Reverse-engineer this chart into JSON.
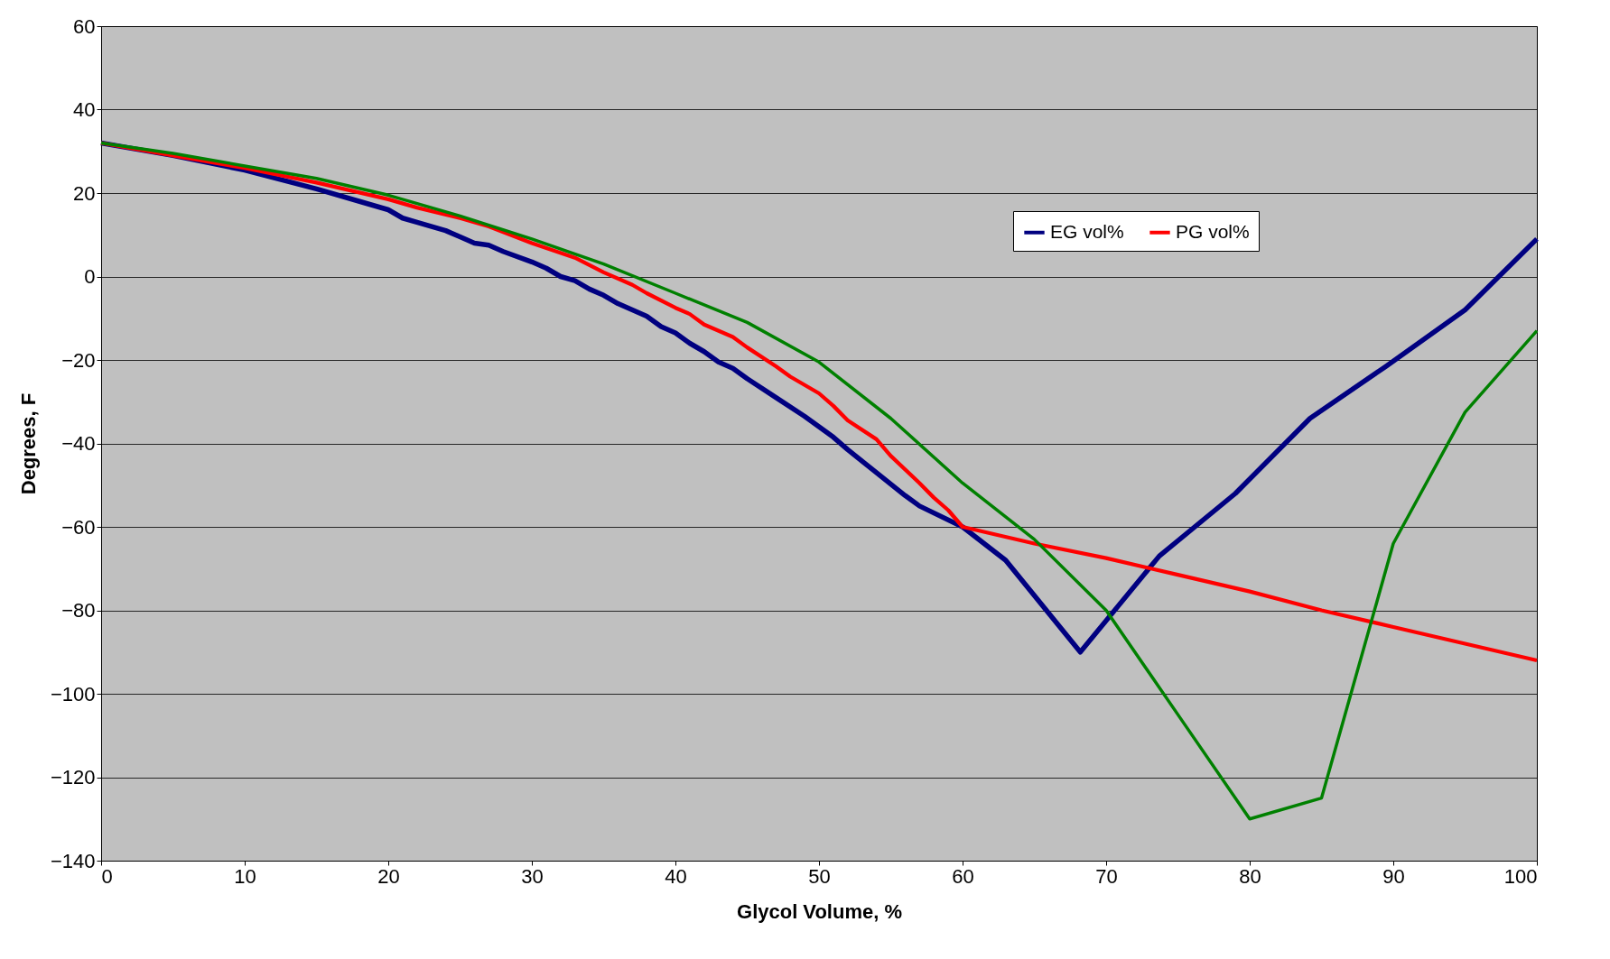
{
  "chart_data": {
    "type": "line",
    "xlabel": "Glycol Volume, %",
    "ylabel": "Degrees, F",
    "xlim": [
      0,
      100
    ],
    "xticks": [
      0,
      10,
      20,
      30,
      40,
      50,
      60,
      70,
      80,
      90,
      100
    ],
    "ylim": [
      -140,
      60
    ],
    "yticks": [
      -140,
      -120,
      -100,
      -80,
      -60,
      -40,
      -20,
      0,
      20,
      40,
      60
    ],
    "grid": "y",
    "legend": "top right",
    "marker": "none",
    "line_style": "solid",
    "series": [
      {
        "name": "EG vol%",
        "color": "#000080",
        "x": [
          0,
          5,
          10,
          15,
          18,
          20,
          21,
          22,
          24,
          25,
          26,
          27,
          28,
          30,
          31,
          32,
          33,
          34,
          35,
          36,
          38,
          39,
          40,
          41,
          42,
          43,
          44,
          45,
          47,
          49,
          50,
          51,
          52,
          54,
          56,
          57,
          60,
          63,
          68.2,
          73.7,
          79,
          84.2,
          89.5,
          95,
          100
        ],
        "values": [
          32,
          29,
          25.5,
          21,
          18,
          16,
          14,
          13,
          11,
          9.5,
          8,
          7.5,
          6,
          3.5,
          2,
          0,
          -1,
          -3,
          -4.5,
          -6.5,
          -9.5,
          -12,
          -13.5,
          -16,
          -18,
          -20.5,
          -22,
          -24.5,
          -29,
          -33.5,
          -36,
          -38.5,
          -41.5,
          -47,
          -52.5,
          -55,
          -60,
          -68,
          -90,
          -67,
          -52,
          -34,
          -21.5,
          -8,
          9
        ]
      },
      {
        "name": "PG vol%",
        "color": "#ff0000",
        "x": [
          0,
          5,
          10,
          15,
          20,
          22,
          25,
          27,
          30,
          33,
          35,
          37,
          38,
          40,
          41,
          42,
          44,
          45,
          47,
          48,
          50,
          51,
          52,
          54,
          55,
          57,
          58,
          59,
          60,
          65,
          70,
          75,
          80,
          85,
          90,
          95,
          100
        ],
        "values": [
          32,
          29,
          26,
          22.5,
          18.5,
          16.5,
          14,
          12,
          8,
          4.5,
          1,
          -2,
          -4,
          -7.5,
          -9,
          -11.5,
          -14.5,
          -17,
          -21.5,
          -24,
          -28,
          -31,
          -34.5,
          -39,
          -43,
          -49.5,
          -53,
          -56,
          -60,
          -64,
          -67.5,
          -71.5,
          -75.5,
          -80,
          -84,
          -88,
          -92
        ]
      },
      {
        "color": "#008000",
        "x": [
          0,
          5,
          10,
          15,
          20,
          25,
          30,
          35,
          40,
          45,
          50,
          55,
          60,
          65,
          70,
          75,
          80,
          85,
          90,
          95,
          100
        ],
        "values": [
          32,
          29.5,
          26.5,
          23.5,
          19.5,
          14.5,
          9,
          3,
          -4,
          -11,
          -20.5,
          -34,
          -49.5,
          -63,
          -80,
          -105,
          -130,
          -125,
          -64,
          -32.5,
          -13
        ]
      }
    ]
  }
}
